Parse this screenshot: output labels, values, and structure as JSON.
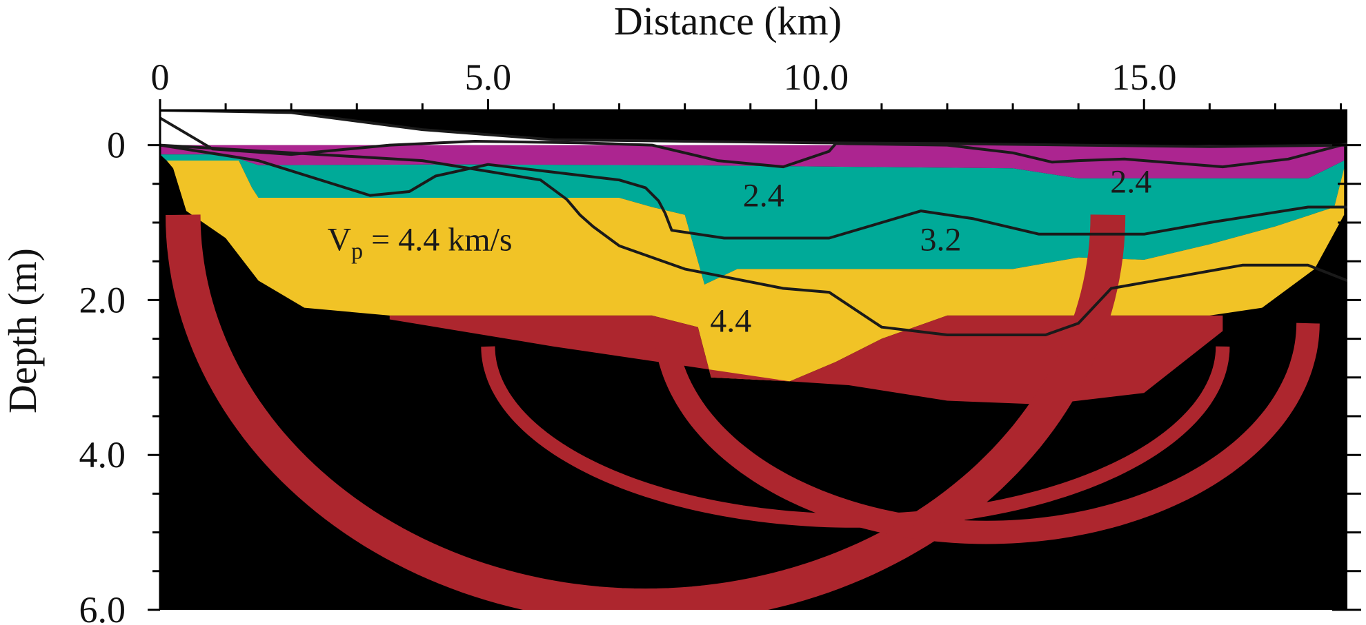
{
  "chart_data": {
    "type": "heatmap",
    "xlabel": "Distance  (km)",
    "ylabel": "Depth  (m)",
    "xlim": [
      0,
      18.1
    ],
    "ylim": [
      6.0,
      -0.45
    ],
    "x_ticks": [
      "0",
      "5.0",
      "10.0",
      "15.0"
    ],
    "x_tick_values": [
      0,
      5,
      10,
      15
    ],
    "y_ticks": [
      "0",
      "2.0",
      "4.0",
      "6.0"
    ],
    "y_tick_values": [
      0,
      2,
      4,
      6
    ],
    "x_minor_step": 1,
    "y_minor_step": 0.5,
    "x_axis_position": "top",
    "colors": {
      "background": "#000000",
      "v_2_4": "#ac2590",
      "v_3_2": "#00aa98",
      "v_4_4": "#f1c326",
      "deep": "#ad262e",
      "contour": "#1a1a1a",
      "surface": "#ffffff"
    },
    "zones": [
      {
        "name": "2.4",
        "color_key": "v_2_4",
        "top": [
          [
            0,
            0
          ],
          [
            18.05,
            0
          ]
        ],
        "bottom": [
          [
            0,
            0.12
          ],
          [
            1,
            0.12
          ],
          [
            1.5,
            0.26
          ],
          [
            4.5,
            0.25
          ],
          [
            8,
            0.26
          ],
          [
            13,
            0.3
          ],
          [
            14,
            0.43
          ],
          [
            16,
            0.43
          ],
          [
            17.5,
            0.43
          ],
          [
            18.05,
            0.2
          ]
        ]
      },
      {
        "name": "3.2",
        "color_key": "v_3_2",
        "top": [
          [
            0,
            0.12
          ],
          [
            1,
            0.12
          ],
          [
            1.5,
            0.26
          ],
          [
            4.5,
            0.25
          ],
          [
            8,
            0.26
          ],
          [
            13,
            0.3
          ],
          [
            14,
            0.43
          ],
          [
            16,
            0.43
          ],
          [
            17.5,
            0.43
          ],
          [
            18.05,
            0.2
          ]
        ],
        "bottom": [
          [
            0.1,
            0.2
          ],
          [
            1.2,
            0.2
          ],
          [
            1.4,
            0.55
          ],
          [
            1.5,
            0.68
          ],
          [
            7,
            0.68
          ],
          [
            7.5,
            0.8
          ],
          [
            8,
            0.9
          ],
          [
            8.3,
            1.8
          ],
          [
            8.8,
            1.6
          ],
          [
            12,
            1.6
          ],
          [
            13,
            1.6
          ],
          [
            14,
            1.45
          ],
          [
            15,
            1.48
          ],
          [
            16,
            1.28
          ],
          [
            17,
            1.05
          ],
          [
            17.9,
            0.8
          ],
          [
            18.05,
            0.3
          ]
        ]
      },
      {
        "name": "4.4",
        "color_key": "v_4_4",
        "top": [
          [
            0.1,
            0.2
          ],
          [
            1.2,
            0.2
          ],
          [
            1.4,
            0.55
          ],
          [
            1.5,
            0.68
          ],
          [
            7,
            0.68
          ],
          [
            7.5,
            0.8
          ],
          [
            8,
            0.9
          ],
          [
            8.3,
            1.8
          ],
          [
            8.8,
            1.6
          ],
          [
            12,
            1.6
          ],
          [
            13,
            1.6
          ],
          [
            14,
            1.45
          ],
          [
            15,
            1.48
          ],
          [
            16,
            1.28
          ],
          [
            17,
            1.05
          ],
          [
            17.9,
            0.8
          ],
          [
            18.05,
            0.3
          ]
        ],
        "bottom": [
          [
            0.2,
            0.3
          ],
          [
            0.4,
            0.85
          ],
          [
            1,
            1.2
          ],
          [
            1.5,
            1.75
          ],
          [
            2.2,
            2.1
          ],
          [
            3.5,
            2.2
          ],
          [
            7.5,
            2.2
          ],
          [
            8.2,
            2.35
          ],
          [
            8.4,
            3.0
          ],
          [
            9.6,
            3.05
          ],
          [
            10.3,
            2.8
          ],
          [
            11,
            2.5
          ],
          [
            12,
            2.2
          ],
          [
            14.5,
            2.2
          ],
          [
            16,
            2.2
          ],
          [
            16.8,
            2.1
          ],
          [
            17.6,
            1.6
          ],
          [
            18.05,
            0.9
          ]
        ]
      },
      {
        "name": "deep",
        "color_key": "deep",
        "top": [
          [
            3.5,
            2.2
          ],
          [
            7.5,
            2.2
          ],
          [
            8.2,
            2.35
          ],
          [
            8.4,
            3.0
          ],
          [
            9.6,
            3.05
          ],
          [
            10.3,
            2.8
          ],
          [
            11,
            2.5
          ],
          [
            12,
            2.2
          ],
          [
            14.5,
            2.2
          ],
          [
            16.2,
            2.2
          ]
        ],
        "bottom": [
          [
            3.5,
            2.25
          ],
          [
            6,
            2.6
          ],
          [
            8,
            2.85
          ],
          [
            9.6,
            3.05
          ],
          [
            10.5,
            3.1
          ],
          [
            12,
            3.3
          ],
          [
            13.5,
            3.35
          ],
          [
            15,
            3.2
          ],
          [
            16.2,
            2.4
          ]
        ]
      }
    ],
    "arcs": [
      {
        "color_key": "deep",
        "center_x": 7.4,
        "radius_x": 7.05,
        "y_top": 0.9,
        "y_bottom": 5.95,
        "thickness": 0.45
      },
      {
        "color_key": "deep",
        "center_x": 12.6,
        "radius_x": 4.9,
        "y_top": 2.3,
        "y_bottom": 5.0,
        "thickness": 0.3
      },
      {
        "color_key": "deep",
        "center_x": 10.6,
        "radius_x": 5.6,
        "y_top": 2.6,
        "y_bottom": 4.85,
        "thickness": 0.18
      }
    ],
    "contours": [
      {
        "name": "surface",
        "points": [
          [
            0,
            -0.45
          ],
          [
            2,
            -0.42
          ],
          [
            4,
            -0.2
          ],
          [
            6,
            -0.07
          ],
          [
            8,
            -0.05
          ],
          [
            10,
            -0.03
          ],
          [
            12,
            -0.02
          ],
          [
            14,
            0
          ],
          [
            16,
            0.02
          ],
          [
            18.1,
            0
          ]
        ]
      },
      {
        "name": "2.4",
        "points": [
          [
            0,
            -0.35
          ],
          [
            0.8,
            0.05
          ],
          [
            2,
            0.12
          ],
          [
            3.5,
            0.0
          ],
          [
            4.8,
            -0.05
          ],
          [
            6.4,
            -0.03
          ],
          [
            7.5,
            0.0
          ],
          [
            8.5,
            0.2
          ],
          [
            9.5,
            0.28
          ],
          [
            10.2,
            0.08
          ],
          [
            10.3,
            -0.02
          ],
          [
            12,
            0.0
          ],
          [
            13,
            0.1
          ],
          [
            13.6,
            0.22
          ],
          [
            14,
            0.2
          ],
          [
            14.7,
            0.18
          ],
          [
            16.2,
            0.28
          ],
          [
            17.2,
            0.18
          ],
          [
            18.1,
            -0.02
          ]
        ]
      },
      {
        "name": "3.2",
        "points": [
          [
            0,
            0.0
          ],
          [
            1.5,
            0.2
          ],
          [
            3.2,
            0.65
          ],
          [
            3.8,
            0.6
          ],
          [
            4.2,
            0.4
          ],
          [
            5,
            0.25
          ],
          [
            6,
            0.35
          ],
          [
            7,
            0.45
          ],
          [
            7.4,
            0.55
          ],
          [
            7.6,
            0.72
          ],
          [
            7.7,
            0.88
          ],
          [
            7.8,
            1.1
          ],
          [
            8.6,
            1.2
          ],
          [
            10.2,
            1.2
          ],
          [
            11,
            1.0
          ],
          [
            11.6,
            0.85
          ],
          [
            12.4,
            0.95
          ],
          [
            13.4,
            1.15
          ],
          [
            15,
            1.15
          ],
          [
            16,
            1.0
          ],
          [
            17.5,
            0.8
          ],
          [
            18.1,
            0.8
          ]
        ]
      },
      {
        "name": "4.4",
        "points": [
          [
            0,
            0.0
          ],
          [
            4,
            0.2
          ],
          [
            5.8,
            0.45
          ],
          [
            6.2,
            0.7
          ],
          [
            6.4,
            0.9
          ],
          [
            6.6,
            1.05
          ],
          [
            7,
            1.3
          ],
          [
            8,
            1.6
          ],
          [
            9.5,
            1.85
          ],
          [
            10.2,
            1.9
          ],
          [
            11.0,
            2.35
          ],
          [
            12.0,
            2.45
          ],
          [
            13.5,
            2.45
          ],
          [
            14.0,
            2.3
          ],
          [
            14.5,
            1.85
          ],
          [
            15.5,
            1.7
          ],
          [
            16.5,
            1.55
          ],
          [
            17.5,
            1.55
          ],
          [
            18.1,
            1.75
          ]
        ]
      }
    ],
    "annotations": [
      {
        "text": "2.4",
        "x": 9.2,
        "y": 0.65
      },
      {
        "text": "2.4",
        "x": 14.8,
        "y": 0.47
      },
      {
        "text": "3.2",
        "x": 11.9,
        "y": 1.22
      },
      {
        "text": "4.4",
        "x": 8.7,
        "y": 2.27
      }
    ],
    "vp_annotation": {
      "text": "V",
      "subscript": "p",
      "rest": " = 4.4 km/s",
      "x": 2.55,
      "y": 1.22
    }
  }
}
